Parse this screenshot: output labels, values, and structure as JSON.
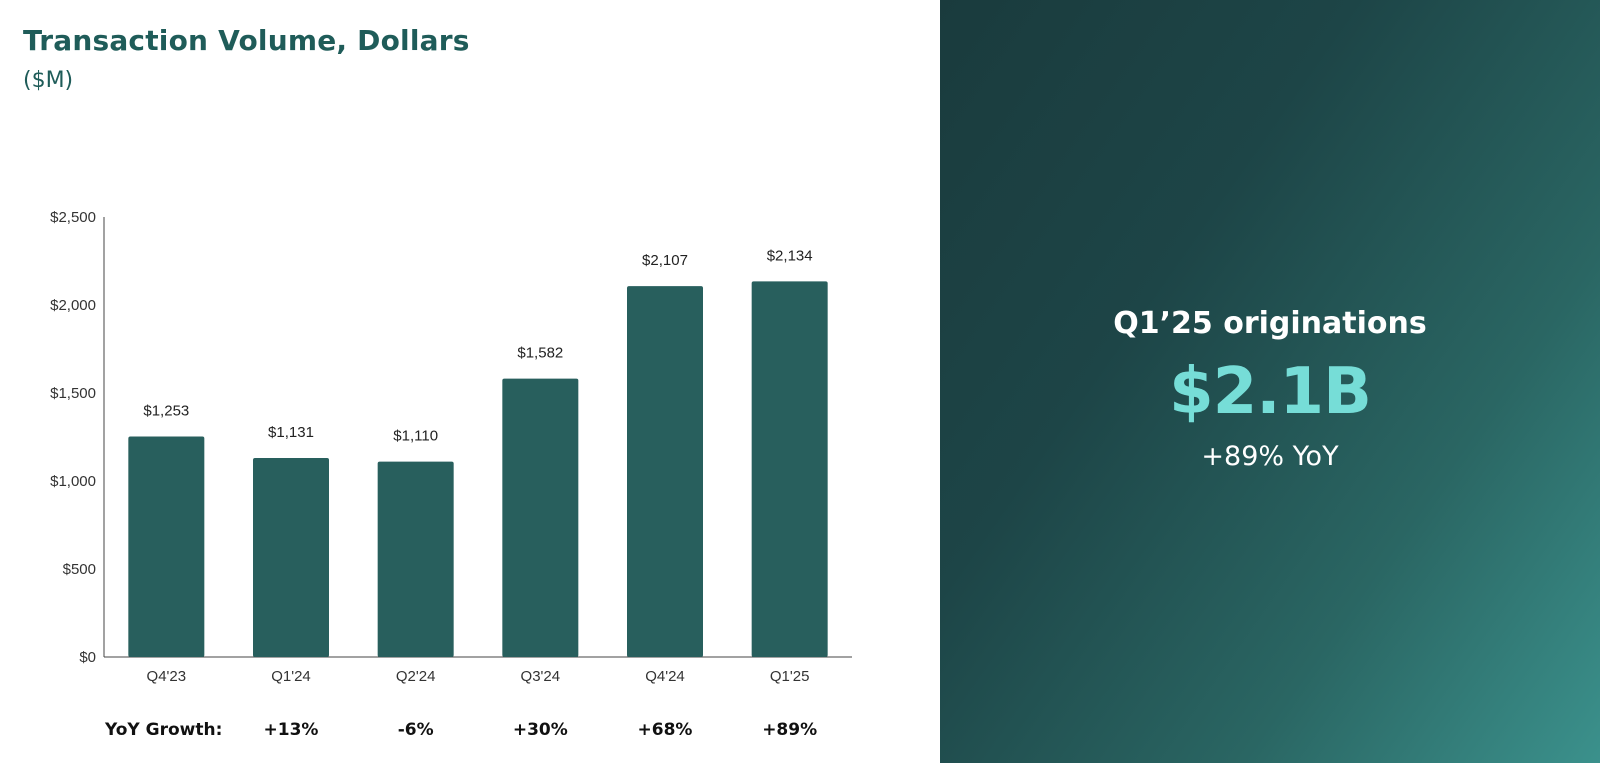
{
  "header": {
    "title": "Transaction Volume, Dollars",
    "subtitle": "($M)"
  },
  "chart_data": {
    "type": "bar",
    "categories": [
      "Q4'23",
      "Q1'24",
      "Q2'24",
      "Q3'24",
      "Q4'24",
      "Q1'25"
    ],
    "values": [
      1253,
      1131,
      1110,
      1582,
      2107,
      2134
    ],
    "value_labels": [
      "$1,253",
      "$1,131",
      "$1,110",
      "$1,582",
      "$2,107",
      "$2,134"
    ],
    "y_ticks": [
      0,
      500,
      1000,
      1500,
      2000,
      2500
    ],
    "y_tick_labels": [
      "$0",
      "$500",
      "$1,000",
      "$1,500",
      "$2,000",
      "$2,500"
    ],
    "ylim": [
      0,
      2500
    ],
    "grid": false,
    "bar_color": "#285f5d",
    "growth_label": "YoY Growth:",
    "growth": [
      "+13%",
      "-6%",
      "+30%",
      "+68%",
      "+89%"
    ]
  },
  "highlight": {
    "label": "Q1’25 originations",
    "value": "$2.1B",
    "sub": "+89% YoY"
  },
  "colors": {
    "accent": "#76ddd7",
    "title": "#1f5c59",
    "panel_dark": "#1a3b3d",
    "panel_light": "#3b918c"
  }
}
